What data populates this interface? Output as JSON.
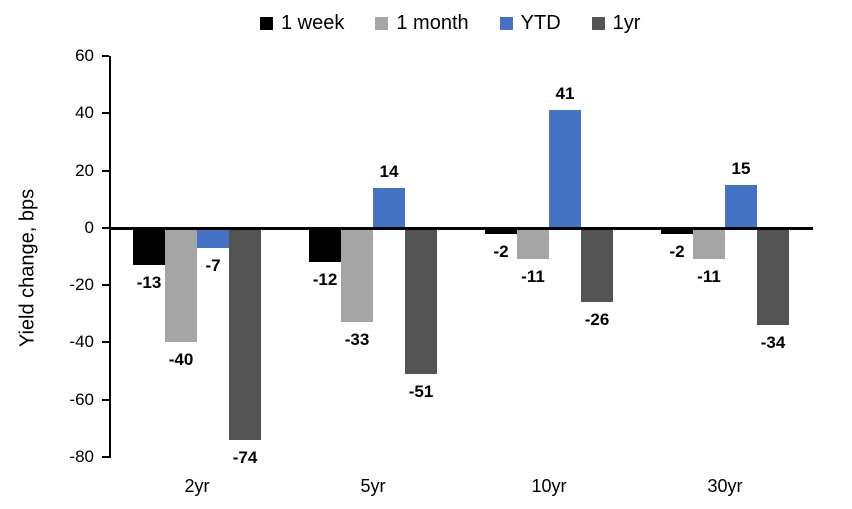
{
  "chart_data": {
    "type": "bar",
    "title": "",
    "ylabel": "Yield change, bps",
    "xlabel": "",
    "categories": [
      "2yr",
      "5yr",
      "10yr",
      "30yr"
    ],
    "series": [
      {
        "name": "1 week",
        "color": "#000000",
        "values": [
          -13,
          -12,
          -2,
          -2
        ]
      },
      {
        "name": "1 month",
        "color": "#A5A5A5",
        "values": [
          -40,
          -33,
          -11,
          -11
        ]
      },
      {
        "name": "YTD",
        "color": "#4472C4",
        "values": [
          -7,
          14,
          41,
          15
        ]
      },
      {
        "name": "1yr",
        "color": "#545454",
        "values": [
          -74,
          -51,
          -26,
          -34
        ]
      }
    ],
    "ylim": [
      -80,
      60
    ],
    "ytick_step": 20,
    "yticks": [
      60,
      40,
      20,
      0,
      -20,
      -40,
      -60,
      -80
    ],
    "legend_position": "top",
    "grid": false,
    "background": "#FFFFFF",
    "axis_color": "#000000",
    "data_labels": true
  }
}
